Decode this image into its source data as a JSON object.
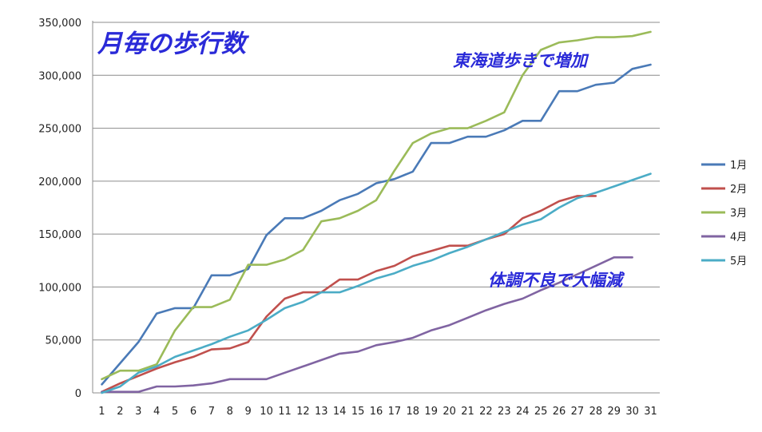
{
  "chart_data": {
    "type": "line",
    "title": "月毎の歩行数",
    "xlabel": "",
    "ylabel": "",
    "x": [
      1,
      2,
      3,
      4,
      5,
      6,
      7,
      8,
      9,
      10,
      11,
      12,
      13,
      14,
      15,
      16,
      17,
      18,
      19,
      20,
      21,
      22,
      23,
      24,
      25,
      26,
      27,
      28,
      29,
      30,
      31
    ],
    "ylim": [
      0,
      350000
    ],
    "yticks": [
      "0",
      "50,000",
      "100,000",
      "150,000",
      "200,000",
      "250,000",
      "300,000",
      "350,000"
    ],
    "grid": true,
    "legend": "right",
    "series": [
      {
        "name": "1月",
        "color": "#4a7ab7",
        "values": [
          8000,
          28000,
          48000,
          75000,
          80000,
          80000,
          111000,
          111000,
          117000,
          149000,
          165000,
          165000,
          172000,
          182000,
          188000,
          198000,
          202000,
          209000,
          236000,
          236000,
          242000,
          242000,
          248000,
          257000,
          257000,
          285000,
          285000,
          291000,
          293000,
          306000,
          310000
        ]
      },
      {
        "name": "2月",
        "color": "#c0504d",
        "values": [
          1000,
          9000,
          16000,
          23000,
          29000,
          34000,
          41000,
          42000,
          48000,
          72000,
          89000,
          95000,
          95000,
          107000,
          107000,
          115000,
          120000,
          129000,
          134000,
          139000,
          139000,
          145000,
          150000,
          165000,
          172000,
          181000,
          186000,
          186000,
          null,
          null,
          null
        ]
      },
      {
        "name": "3月",
        "color": "#9bbb59",
        "values": [
          13000,
          21000,
          21000,
          27000,
          59000,
          81000,
          81000,
          88000,
          121000,
          121000,
          126000,
          135000,
          162000,
          165000,
          172000,
          182000,
          210000,
          236000,
          245000,
          250000,
          250000,
          257000,
          265000,
          300000,
          324000,
          331000,
          333000,
          336000,
          336000,
          337000,
          341000
        ]
      },
      {
        "name": "4月",
        "color": "#8064a2",
        "values": [
          1000,
          1000,
          1000,
          6000,
          6000,
          7000,
          9000,
          13000,
          13000,
          13000,
          19000,
          25000,
          31000,
          37000,
          39000,
          45000,
          48000,
          52000,
          59000,
          64000,
          71000,
          78000,
          84000,
          89000,
          97000,
          104000,
          112000,
          120000,
          128000,
          128000,
          null
        ]
      },
      {
        "name": "5月",
        "color": "#4bacc6",
        "values": [
          0,
          6000,
          19000,
          25000,
          34000,
          40000,
          46000,
          53000,
          59000,
          69000,
          80000,
          86000,
          95000,
          95000,
          101000,
          108000,
          113000,
          120000,
          125000,
          132000,
          138000,
          145000,
          152000,
          159000,
          164000,
          175000,
          184000,
          189000,
          195000,
          201000,
          207000
        ]
      }
    ],
    "annotations": [
      {
        "text": "東海道歩きで増加"
      },
      {
        "text": "体調不良で大幅減"
      }
    ]
  }
}
